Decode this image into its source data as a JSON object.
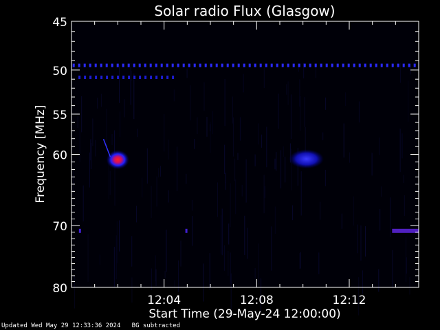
{
  "chart_data": {
    "type": "heatmap",
    "title": "Solar radio Flux (Glasgow)",
    "xlabel": "Start Time (29-May-24 12:00:00)",
    "ylabel": "Frequency [MHz]",
    "x_ticks": [
      "12:04",
      "12:08",
      "12:12"
    ],
    "x_tick_minutes": [
      4,
      8,
      12
    ],
    "xlim_minutes": [
      0,
      15
    ],
    "y_ticks": [
      45,
      50,
      55,
      60,
      70,
      80
    ],
    "ylim": [
      45,
      80
    ],
    "y_scale": "log",
    "colormap": [
      "#000000",
      "#000066",
      "#0000ff",
      "#ff0000"
    ],
    "features": [
      {
        "name": "interference-line",
        "freq": 49.5,
        "start_min": 0.05,
        "end_min": 14.9,
        "intensity": 0.5,
        "dotted": true
      },
      {
        "name": "interference-line",
        "freq": 50.8,
        "start_min": 0.3,
        "end_min": 4.5,
        "intensity": 0.35,
        "dotted": true
      },
      {
        "name": "burst",
        "freq": 60.7,
        "start_min": 1.5,
        "end_min": 2.5,
        "intensity": 1.0
      },
      {
        "name": "burst",
        "freq": 60.6,
        "start_min": 9.4,
        "end_min": 10.9,
        "intensity": 0.6
      },
      {
        "name": "interference-line",
        "freq": 70.8,
        "start_min": 13.85,
        "end_min": 15.0,
        "intensity": 0.55
      },
      {
        "name": "spot",
        "freq": 70.8,
        "start_min": 0.35,
        "end_min": 0.45,
        "intensity": 0.5
      },
      {
        "name": "spot",
        "freq": 70.8,
        "start_min": 4.95,
        "end_min": 5.05,
        "intensity": 0.5
      }
    ]
  },
  "footer": {
    "updated": "Updated Wed May 29 12:33:36 2024",
    "note": "BG subtracted"
  }
}
